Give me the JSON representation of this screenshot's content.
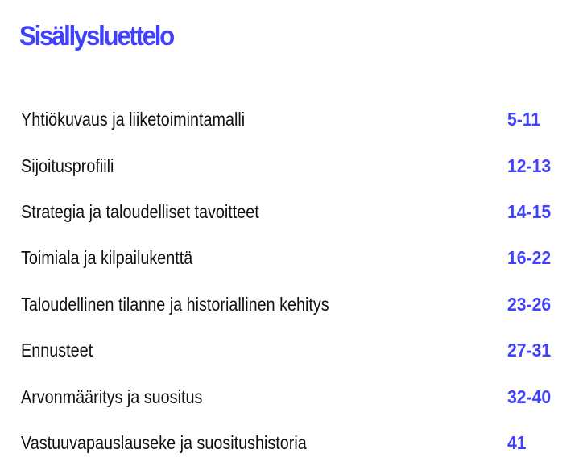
{
  "title": "Sisällysluettelo",
  "accent_color": "#4040ff",
  "entries": [
    {
      "label": "Yhtiökuvaus ja liiketoimintamalli",
      "pages": "5-11"
    },
    {
      "label": "Sijoitusprofiili",
      "pages": "12-13"
    },
    {
      "label": "Strategia ja taloudelliset tavoitteet",
      "pages": "14-15"
    },
    {
      "label": "Toimiala ja kilpailukenttä",
      "pages": "16-22"
    },
    {
      "label": "Taloudellinen tilanne ja historiallinen kehitys",
      "pages": "23-26"
    },
    {
      "label": "Ennusteet",
      "pages": "27-31"
    },
    {
      "label": "Arvonmääritys ja suositus",
      "pages": "32-40"
    },
    {
      "label": "Vastuuvapauslauseke ja suositushistoria",
      "pages": "41"
    }
  ]
}
